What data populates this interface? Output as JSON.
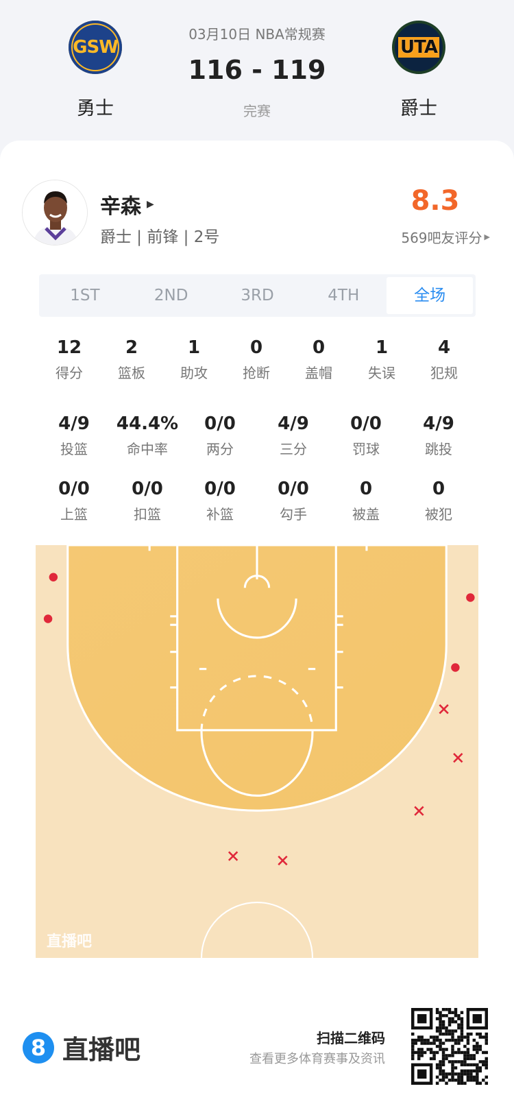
{
  "game": {
    "date_league": "03月10日 NBA常规赛",
    "score": "116 - 119",
    "status": "完赛",
    "home": {
      "abbr": "GSW",
      "name": "勇士"
    },
    "away": {
      "abbr": "UTA",
      "name": "爵士"
    }
  },
  "player": {
    "name": "辛森",
    "info": "爵士 | 前锋 | 2号",
    "rating": "8.3",
    "rating_label": "569吧友评分",
    "rating_color": "#F2672A",
    "avatar_icon": "player-photo"
  },
  "tabs": [
    {
      "label": "1ST"
    },
    {
      "label": "2ND"
    },
    {
      "label": "3RD"
    },
    {
      "label": "4TH"
    },
    {
      "label": "全场",
      "active": true
    }
  ],
  "stats_row1": [
    {
      "v": "12",
      "l": "得分"
    },
    {
      "v": "2",
      "l": "篮板"
    },
    {
      "v": "1",
      "l": "助攻"
    },
    {
      "v": "0",
      "l": "抢断"
    },
    {
      "v": "0",
      "l": "盖帽"
    },
    {
      "v": "1",
      "l": "失误"
    },
    {
      "v": "4",
      "l": "犯规"
    }
  ],
  "stats_row2": [
    {
      "v": "4/9",
      "l": "投篮"
    },
    {
      "v": "44.4%",
      "l": "命中率"
    },
    {
      "v": "0/0",
      "l": "两分"
    },
    {
      "v": "4/9",
      "l": "三分"
    },
    {
      "v": "0/0",
      "l": "罚球"
    },
    {
      "v": "4/9",
      "l": "跳投"
    }
  ],
  "stats_row3": [
    {
      "v": "0/0",
      "l": "上篮"
    },
    {
      "v": "0/0",
      "l": "扣篮"
    },
    {
      "v": "0/0",
      "l": "补篮"
    },
    {
      "v": "0/0",
      "l": "勾手"
    },
    {
      "v": "0",
      "l": "被盖"
    },
    {
      "v": "0",
      "l": "被犯"
    }
  ],
  "shot_chart": {
    "watermark": "直播吧",
    "units": "feet from basket (x: left-right, y: toward half court)",
    "colors": {
      "made": "#E0283A",
      "missed": "#E0283A",
      "paint": "#F5C66F",
      "floor": "#F8E2BE"
    },
    "shots": [
      {
        "x": -23.0,
        "y": -1.2,
        "made": true
      },
      {
        "x": -23.6,
        "y": 3.5,
        "made": true
      },
      {
        "x": 24.1,
        "y": 1.1,
        "made": true
      },
      {
        "x": 22.4,
        "y": 9.0,
        "made": true
      },
      {
        "x": 21.1,
        "y": 13.7,
        "made": false
      },
      {
        "x": 22.7,
        "y": 19.2,
        "made": false
      },
      {
        "x": 18.3,
        "y": 25.2,
        "made": false
      },
      {
        "x": -2.7,
        "y": 30.3,
        "made": false
      },
      {
        "x": 2.9,
        "y": 30.8,
        "made": false
      }
    ]
  },
  "footer": {
    "brand": "直播吧",
    "brand_mark": "8",
    "brand_color": "#1E8FF0",
    "scan_title": "扫描二维码",
    "scan_sub": "查看更多体育赛事及资讯"
  }
}
